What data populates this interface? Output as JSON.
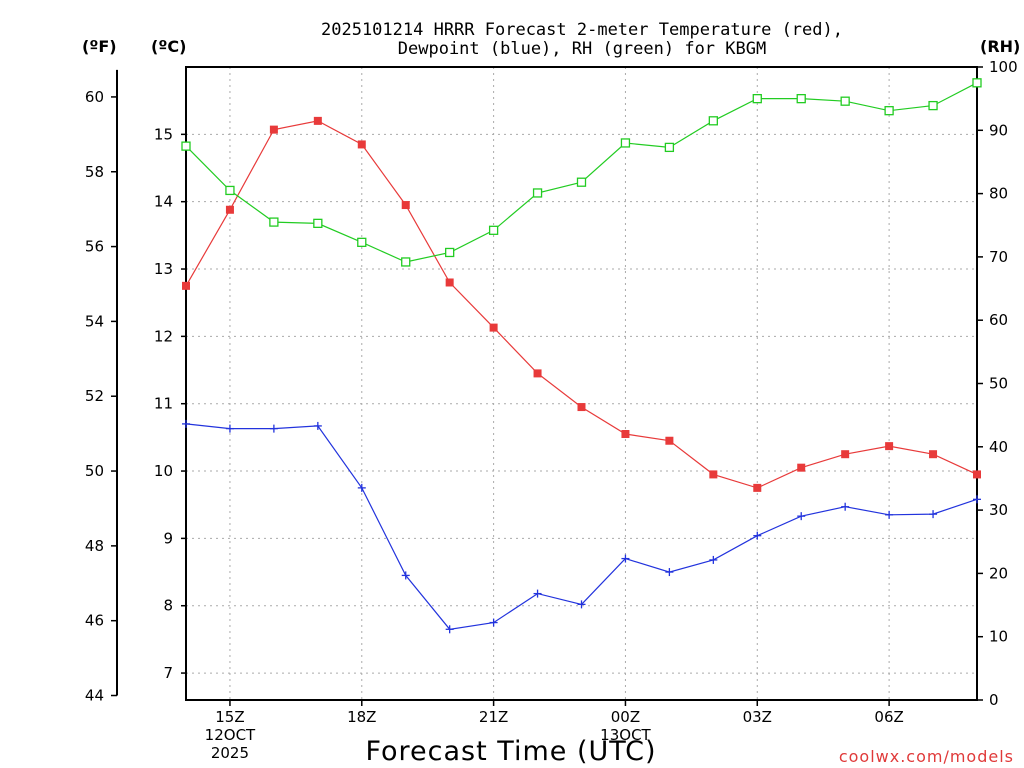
{
  "chart_data": {
    "type": "line",
    "title": [
      "2025101214 HRRR Forecast 2-meter Temperature (red),",
      "Dewpoint (blue), RH (green) for KBGM"
    ],
    "xlabel": "Forecast Time (UTC)",
    "credit": "coolwx.com/models",
    "units": {
      "fahrenheit": "(ºF)",
      "celsius": "(ºC)",
      "rh": "(RH)"
    },
    "x_hours": [
      14,
      15,
      16,
      17,
      18,
      19,
      20,
      21,
      22,
      23,
      24,
      25,
      26,
      27,
      28,
      29,
      30,
      31,
      32
    ],
    "x_ticks": [
      {
        "hour": 15,
        "label": [
          "15Z",
          "12OCT",
          "2025"
        ]
      },
      {
        "hour": 18,
        "label": [
          "18Z"
        ]
      },
      {
        "hour": 21,
        "label": [
          "21Z"
        ]
      },
      {
        "hour": 24,
        "label": [
          "00Z",
          "13OCT"
        ]
      },
      {
        "hour": 27,
        "label": [
          "03Z"
        ]
      },
      {
        "hour": 30,
        "label": [
          "06Z"
        ]
      }
    ],
    "y_left_c": {
      "range": [
        6.6,
        16.0
      ],
      "ticks": [
        "7",
        "8",
        "9",
        "10",
        "11",
        "12",
        "13",
        "14",
        "15"
      ]
    },
    "y_left_f": {
      "ticks": [
        "44",
        "46",
        "48",
        "50",
        "52",
        "54",
        "56",
        "58",
        "60"
      ]
    },
    "y_right_rh": {
      "range": [
        0,
        100
      ],
      "ticks": [
        "0",
        "10",
        "20",
        "30",
        "40",
        "50",
        "60",
        "70",
        "80",
        "90",
        "100"
      ]
    },
    "series": [
      {
        "name": "Temperature (°C)",
        "color": "#e83a3a",
        "marker": "filled-square",
        "axis": "c",
        "values": [
          12.75,
          13.88,
          15.07,
          15.2,
          14.85,
          13.95,
          12.8,
          12.13,
          11.45,
          10.95,
          10.55,
          10.45,
          9.95,
          9.75,
          10.05,
          10.25,
          10.37,
          10.25,
          9.95
        ]
      },
      {
        "name": "Dewpoint (°C)",
        "color": "#2233dd",
        "marker": "plus",
        "axis": "c",
        "values": [
          10.7,
          10.63,
          10.63,
          10.67,
          9.75,
          8.45,
          7.65,
          7.75,
          8.18,
          8.02,
          8.7,
          8.5,
          8.68,
          9.04,
          9.33,
          9.47,
          9.35,
          9.36,
          9.58
        ]
      },
      {
        "name": "RH (%)",
        "color": "#22cc22",
        "marker": "open-square",
        "axis": "rh",
        "values": [
          87.5,
          80.5,
          75.5,
          75.3,
          72.3,
          69.2,
          70.7,
          74.2,
          80.1,
          81.8,
          88,
          87.3,
          91.5,
          95,
          95,
          94.6,
          93.1,
          93.9,
          97.5
        ]
      }
    ]
  }
}
